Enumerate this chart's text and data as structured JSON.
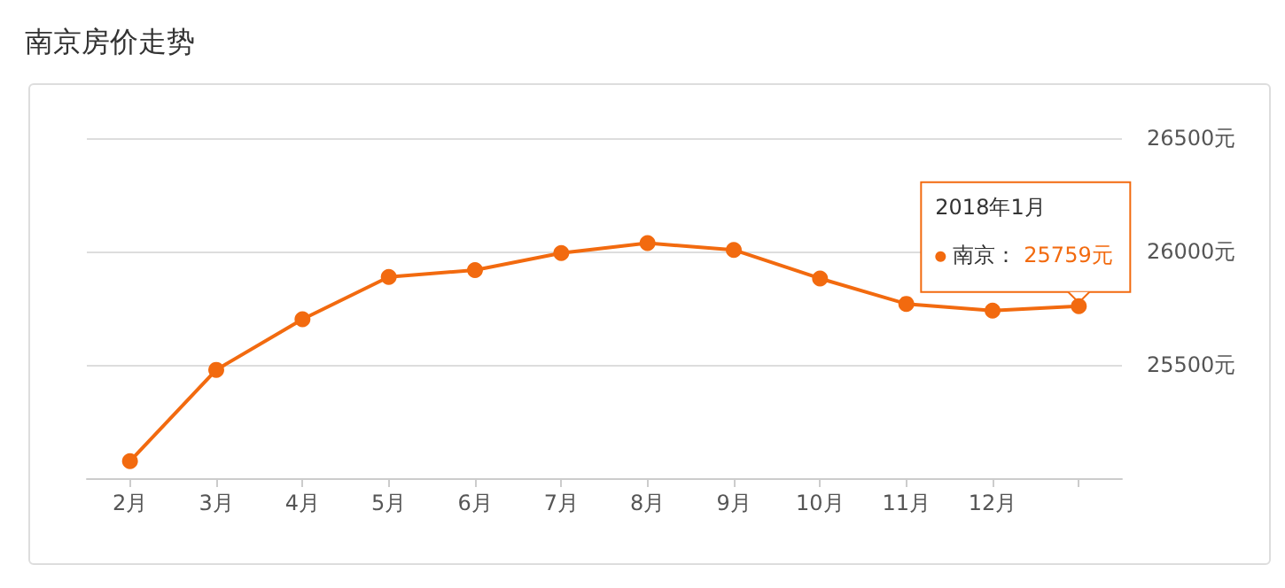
{
  "chart_data": {
    "type": "line",
    "title": "南京房价走势",
    "categories": [
      "2月",
      "3月",
      "4月",
      "5月",
      "6月",
      "7月",
      "8月",
      "9月",
      "10月",
      "11月",
      "12月",
      null
    ],
    "series": [
      {
        "name": "南京：",
        "color": "#f26a0f",
        "values": [
          25075,
          25478,
          25701,
          25888,
          25918,
          25993,
          26037,
          26007,
          25881,
          25769,
          25739,
          25759
        ],
        "value_labels": [
          null,
          null,
          null,
          null,
          null,
          null,
          null,
          null,
          null,
          null,
          null,
          "25759元"
        ]
      }
    ],
    "annotations": [
      "2018年1月"
    ],
    "ylim": [
      25000,
      26500
    ],
    "yticks": [
      {
        "value": 25000,
        "label": null
      },
      {
        "value": 25500,
        "label": "25500元"
      },
      {
        "value": 26000,
        "label": "26000元"
      },
      {
        "value": 26500,
        "label": "26500元"
      }
    ],
    "grid": "y",
    "marker": "circle",
    "line_style": "solid",
    "legend": "top right"
  }
}
